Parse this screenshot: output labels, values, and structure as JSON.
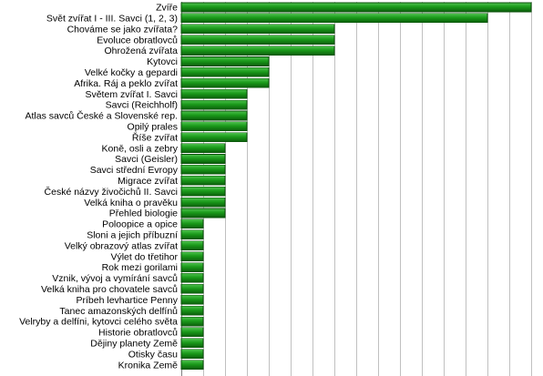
{
  "colors": {
    "bar_top": "#4fc24f",
    "bar_mid": "#1a9a1a",
    "bar_bottom": "#0b5d0b",
    "bar_edge": "#0a4f0a",
    "grid": "#c0c0c0",
    "axis": "#808080"
  },
  "chart_data": {
    "type": "bar",
    "orientation": "horizontal",
    "grid": true,
    "xlim": [
      0,
      16
    ],
    "categories": [
      "Zvíře",
      "Svět zvířat I - III. Savci (1, 2, 3)",
      "Chováme se jako zvířata?",
      "Evoluce obratlovců",
      "Ohrožená zvířata",
      "Kytovci",
      "Velké kočky a gepardi",
      "Afrika. Ráj a peklo zvířat",
      "Světem zvířat I. Savci",
      "Savci (Reichholf)",
      "Atlas savců České a Slovenské rep.",
      "Opilý prales",
      "Říše zvířat",
      "Koně, osli a zebry",
      "Savci (Geisler)",
      "Savci střední Evropy",
      "Migrace zvířat",
      "České názvy živočichů II. Savci",
      "Velká kniha o pravěku",
      "Přehled biologie",
      "Poloopice a opice",
      "Sloni a jejich příbuzní",
      "Velký obrazový atlas zvířat",
      "Výlet do třetihor",
      "Rok mezi gorilami",
      "Vznik, vývoj a vymírání savců",
      "Velká kniha pro chovatele savců",
      "Príbeh levhartice Penny",
      "Tanec amazonských delfínů",
      "Velryby a delfíni, kytovci celého světa",
      "Historie obratlovců",
      "Dějiny planety Země",
      "Otisky času",
      "Kronika Země"
    ],
    "values": [
      16,
      14,
      7,
      7,
      7,
      4,
      4,
      4,
      3,
      3,
      3,
      3,
      3,
      2,
      2,
      2,
      2,
      2,
      2,
      2,
      1,
      1,
      1,
      1,
      1,
      0,
      0,
      0,
      0,
      0,
      0,
      0,
      0,
      0
    ]
  }
}
